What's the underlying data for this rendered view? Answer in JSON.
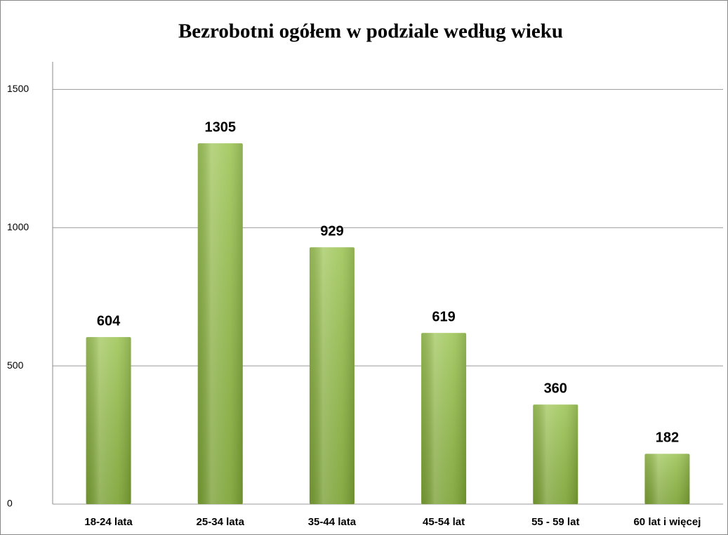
{
  "chart_data": {
    "type": "bar",
    "title": "Bezrobotni ogółem w podziale według wieku",
    "categories": [
      "18-24 lata",
      "25-34 lata",
      "35-44 lata",
      "45-54 lat",
      "55 - 59 lat",
      "60 lat i więcej"
    ],
    "values": [
      604,
      1305,
      929,
      619,
      360,
      182
    ],
    "color": "#8fbc3c",
    "ylim": [
      0,
      1600
    ],
    "yticks": [
      0,
      500,
      1000,
      1500
    ],
    "grid": true
  }
}
